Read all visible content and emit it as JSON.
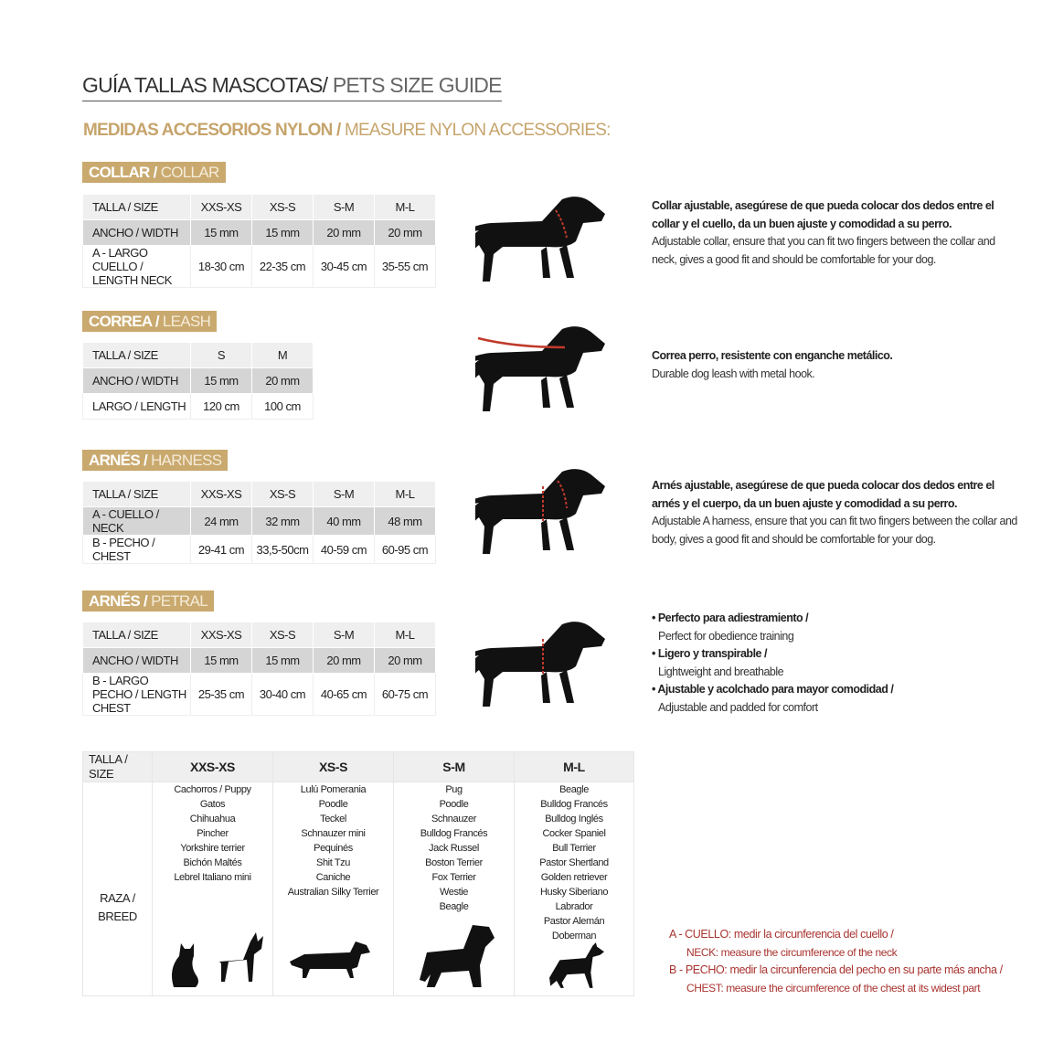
{
  "title": {
    "bold": "GUÍA TALLAS MASCOTAS/",
    "light": " PETS SIZE GUIDE"
  },
  "subtitle": {
    "bold": "MEDIDAS ACCESORIOS NYLON /",
    "light": " MEASURE NYLON ACCESSORIES:"
  },
  "colors": {
    "gold": "#c9a96e",
    "red_text": "#a8332f",
    "gray_row": "#d5d5d5"
  },
  "sections": [
    {
      "label_bold": "COLLAR /",
      "label_light": " COLLAR",
      "rows": [
        [
          "TALLA / SIZE",
          "XXS-XS",
          "XS-S",
          "S-M",
          "M-L"
        ],
        [
          "ANCHO / WIDTH",
          "15 mm",
          "15 mm",
          "20 mm",
          "20 mm"
        ],
        [
          "A - LARGO CUELLO / LENGTH NECK",
          "18-30 cm",
          "22-35 cm",
          "30-45 cm",
          "35-55 cm"
        ]
      ],
      "desc_es": "Collar ajustable, asegúrese de que pueda colocar dos dedos entre el collar y el cuello, da un buen ajuste y comodidad a su perro.",
      "desc_en": "Adjustable collar, ensure that you can fit two fingers between the collar and neck, gives a good fit and should be comfortable for your dog.",
      "image": "dog-collar-icon"
    },
    {
      "label_bold": "CORREA /",
      "label_light": " LEASH",
      "rows": [
        [
          "TALLA / SIZE",
          "S",
          "M"
        ],
        [
          "ANCHO / WIDTH",
          "15 mm",
          "20 mm"
        ],
        [
          "LARGO / LENGTH",
          "120 cm",
          "100 cm"
        ]
      ],
      "desc_es": "Correa perro, resistente con enganche metálico.",
      "desc_en": "Durable dog leash with metal hook.",
      "image": "dog-leash-icon"
    },
    {
      "label_bold": "ARNÉS /",
      "label_light": " HARNESS",
      "rows": [
        [
          "TALLA / SIZE",
          "XXS-XS",
          "XS-S",
          "S-M",
          "M-L"
        ],
        [
          "A - CUELLO / NECK",
          "24 mm",
          "32 mm",
          "40 mm",
          "48 mm"
        ],
        [
          "B - PECHO / CHEST",
          "29-41 cm",
          "33,5-50cm",
          "40-59 cm",
          "60-95 cm"
        ]
      ],
      "desc_es": "Arnés ajustable, asegúrese de que pueda colocar dos dedos entre el arnés y el cuerpo, da un buen ajuste y comodidad a su perro.",
      "desc_en": "Adjustable A harness, ensure that you can fit two fingers between the collar and body, gives a good fit and should be comfortable for your dog.",
      "image": "dog-harness-icon"
    },
    {
      "label_bold": "ARNÉS /",
      "label_light": " PETRAL",
      "rows": [
        [
          "TALLA / SIZE",
          "XXS-XS",
          "XS-S",
          "S-M",
          "M-L"
        ],
        [
          "ANCHO / WIDTH",
          "15 mm",
          "15 mm",
          "20 mm",
          "20 mm"
        ],
        [
          "B - LARGO PECHO / LENGTH CHEST",
          "25-35 cm",
          "30-40 cm",
          "40-65 cm",
          "60-75 cm"
        ]
      ],
      "bullets": [
        {
          "es": "• Perfecto para adiestramiento /",
          "en": "Perfect for obedience training"
        },
        {
          "es": "• Ligero y transpirable /",
          "en": "Lightweight and breathable"
        },
        {
          "es": "• Ajustable y acolchado para mayor comodidad /",
          "en": "Adjustable and padded for comfort"
        }
      ],
      "image": "dog-petral-icon"
    }
  ],
  "breeds": {
    "header": [
      "TALLA /  SIZE",
      "XXS-XS",
      "XS-S",
      "S-M",
      "M-L"
    ],
    "row_label": "RAZA / BREED",
    "columns": [
      [
        "Cachorros / Puppy",
        "Gatos",
        "Chihuahua",
        "Pincher",
        "Yorkshire terrier",
        "Bichón Maltés",
        "Lebrel Italiano mini"
      ],
      [
        "Lulú Pomerania",
        "Poodle",
        "Teckel",
        "Schnauzer mini",
        "Pequinés",
        "Shit Tzu",
        "Caniche",
        "Australian Silky Terrier"
      ],
      [
        "Pug",
        "Poodle",
        "Schnauzer",
        "Bulldog Francés",
        "Jack Russel",
        "Boston Terrier",
        "Fox Terrier",
        "Westie",
        "Beagle"
      ],
      [
        "Beagle",
        "Bulldog Francés",
        "Bulldog Inglés",
        "Cocker Spaniel",
        "Bull Terrier",
        "Pastor Shertland",
        "Golden retriever",
        "Husky Siberiano",
        "Labrador",
        "Pastor Alemán",
        "Doberman"
      ]
    ],
    "images": [
      "cat-and-chihuahua-icon",
      "dachshund-icon",
      "schnauzer-icon",
      "doberman-icon"
    ]
  },
  "legend": {
    "a_es": "A - CUELLO: medir la circunferencia del cuello /",
    "a_en": "NECK: measure the circumference of the neck",
    "b_es": "B - PECHO: medir la circunferencia del pecho en su parte más ancha /",
    "b_en": "CHEST: measure the circumference of the chest at its widest part"
  }
}
